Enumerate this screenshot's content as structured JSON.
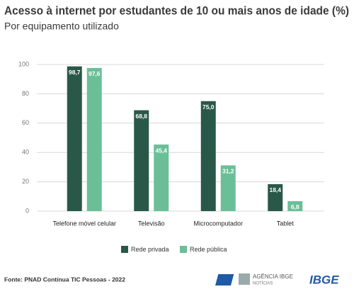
{
  "chart_data": {
    "type": "bar",
    "title": "Acesso à internet por estudantes de 10 ou mais anos de idade (%)",
    "subtitle": "Por equipamento utilizado",
    "categories": [
      "Telefone móvel celular",
      "Televisão",
      "Microcomputador",
      "Tablet"
    ],
    "series": [
      {
        "name": "Rede privada",
        "color": "#2a5848",
        "values": [
          98.7,
          68.8,
          75.0,
          18.4
        ],
        "value_labels": [
          "98,7",
          "68,8",
          "75,0",
          "18,4"
        ]
      },
      {
        "name": "Rede pública",
        "color": "#6bbf98",
        "values": [
          97.6,
          45.4,
          31.2,
          6.8
        ],
        "value_labels": [
          "97,6",
          "45,4",
          "31,2",
          "6,8"
        ]
      }
    ],
    "ylim": [
      0,
      100
    ],
    "yticks": [
      0,
      20,
      40,
      60,
      80,
      100
    ],
    "grid": true,
    "source": "Fonte: PNAD Contínua TIC Pessoas - 2022"
  },
  "branding": {
    "agency": "AGÊNCIA IBGE",
    "agency_sub": "NOTÍCIAS",
    "logo": "IBGE"
  }
}
